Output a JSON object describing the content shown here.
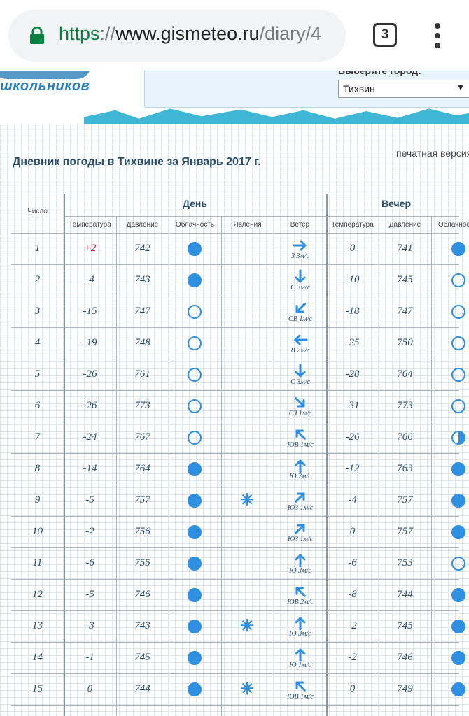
{
  "browser": {
    "url_scheme": "https",
    "url_sep": "://",
    "url_host": "www.gismeteo.ru",
    "url_path": "/diary/4",
    "tab_count": "3"
  },
  "site": {
    "logo_text": "школьников",
    "city_label": "Выберите город:",
    "city_selected": "Тихвин",
    "print_link": "печатная версия",
    "title": "Дневник погоды в Тихвине за Январь 2017 г."
  },
  "table": {
    "col_day_num": "Число",
    "group_day": "День",
    "group_evening": "Вечер",
    "sub_headers": [
      "Температура",
      "Давление",
      "Облачность",
      "Явления",
      "Ветер",
      "Температура",
      "Давление",
      "Облачность"
    ],
    "rows": [
      {
        "day": "1",
        "t": "+2",
        "p": "742",
        "cloud": "full",
        "phen": "",
        "wdir": "E",
        "wind": "З 3м/с",
        "et": "0",
        "ep": "741",
        "ecloud": "full"
      },
      {
        "day": "2",
        "t": "-4",
        "p": "743",
        "cloud": "full",
        "phen": "",
        "wdir": "S",
        "wind": "С 3м/с",
        "et": "-10",
        "ep": "745",
        "ecloud": "empty"
      },
      {
        "day": "3",
        "t": "-15",
        "p": "747",
        "cloud": "empty",
        "phen": "",
        "wdir": "SW",
        "wind": "СВ 1м/с",
        "et": "-18",
        "ep": "747",
        "ecloud": "empty"
      },
      {
        "day": "4",
        "t": "-19",
        "p": "748",
        "cloud": "empty",
        "phen": "",
        "wdir": "W",
        "wind": "В 2м/с",
        "et": "-25",
        "ep": "750",
        "ecloud": "empty"
      },
      {
        "day": "5",
        "t": "-26",
        "p": "761",
        "cloud": "empty",
        "phen": "",
        "wdir": "S",
        "wind": "С 3м/с",
        "et": "-28",
        "ep": "764",
        "ecloud": "empty"
      },
      {
        "day": "6",
        "t": "-26",
        "p": "773",
        "cloud": "empty",
        "phen": "",
        "wdir": "SE",
        "wind": "СЗ 1м/с",
        "et": "-31",
        "ep": "773",
        "ecloud": "empty"
      },
      {
        "day": "7",
        "t": "-24",
        "p": "767",
        "cloud": "empty",
        "phen": "",
        "wdir": "NW",
        "wind": "ЮВ 1м/с",
        "et": "-26",
        "ep": "766",
        "ecloud": "half"
      },
      {
        "day": "8",
        "t": "-14",
        "p": "764",
        "cloud": "full",
        "phen": "",
        "wdir": "N",
        "wind": "Ю 2м/с",
        "et": "-12",
        "ep": "763",
        "ecloud": "full"
      },
      {
        "day": "9",
        "t": "-5",
        "p": "757",
        "cloud": "full",
        "phen": "snow",
        "wdir": "NE",
        "wind": "ЮЗ 1м/с",
        "et": "-4",
        "ep": "757",
        "ecloud": "full"
      },
      {
        "day": "10",
        "t": "-2",
        "p": "756",
        "cloud": "full",
        "phen": "",
        "wdir": "NE",
        "wind": "ЮЗ 1м/с",
        "et": "0",
        "ep": "757",
        "ecloud": "full"
      },
      {
        "day": "11",
        "t": "-6",
        "p": "755",
        "cloud": "full",
        "phen": "",
        "wdir": "N",
        "wind": "Ю 3м/с",
        "et": "-6",
        "ep": "753",
        "ecloud": "empty"
      },
      {
        "day": "12",
        "t": "-5",
        "p": "746",
        "cloud": "full",
        "phen": "",
        "wdir": "NW",
        "wind": "ЮВ 2м/с",
        "et": "-8",
        "ep": "744",
        "ecloud": "full"
      },
      {
        "day": "13",
        "t": "-3",
        "p": "743",
        "cloud": "full",
        "phen": "snow",
        "wdir": "N",
        "wind": "Ю 3м/с",
        "et": "-2",
        "ep": "745",
        "ecloud": "full"
      },
      {
        "day": "14",
        "t": "-1",
        "p": "745",
        "cloud": "full",
        "phen": "",
        "wdir": "N",
        "wind": "Ю 1м/с",
        "et": "-2",
        "ep": "746",
        "ecloud": "full"
      },
      {
        "day": "15",
        "t": "0",
        "p": "744",
        "cloud": "full",
        "phen": "snow",
        "wdir": "NW",
        "wind": "ЮВ 1м/с",
        "et": "0",
        "ep": "749",
        "ecloud": "full"
      }
    ]
  },
  "colors": {
    "accent": "#2f8fe0",
    "title": "#2b4f6b",
    "positive_temp": "#c02020",
    "url_green": "#0b8043"
  }
}
